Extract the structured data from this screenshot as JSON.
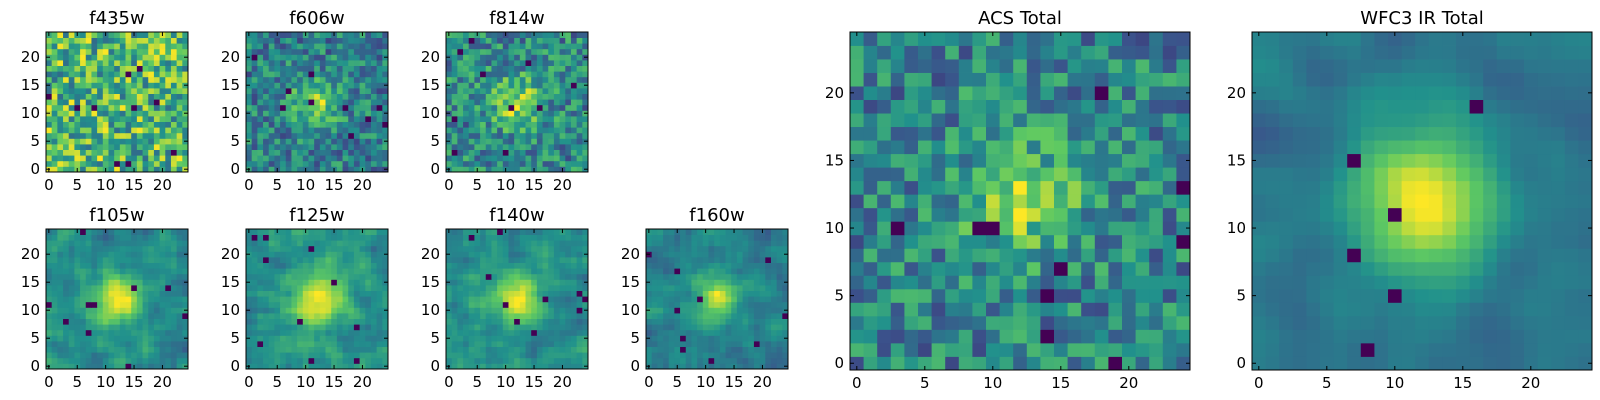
{
  "chart_data": [
    {
      "type": "heatmap",
      "title": "f435w",
      "xticks": [
        "0",
        "5",
        "10",
        "15",
        "20"
      ],
      "yticks": [
        "0",
        "5",
        "10",
        "15",
        "20"
      ],
      "grid_size": [
        25,
        25
      ],
      "colormap": "viridis",
      "pattern": "noise",
      "seed": 11
    },
    {
      "type": "heatmap",
      "title": "f606w",
      "xticks": [
        "0",
        "5",
        "10",
        "15",
        "20"
      ],
      "yticks": [
        "0",
        "5",
        "10",
        "15",
        "20"
      ],
      "grid_size": [
        25,
        25
      ],
      "colormap": "viridis",
      "pattern": "noisy-peak",
      "seed": 12
    },
    {
      "type": "heatmap",
      "title": "f814w",
      "xticks": [
        "0",
        "5",
        "10",
        "15",
        "20"
      ],
      "yticks": [
        "0",
        "5",
        "10",
        "15",
        "20"
      ],
      "grid_size": [
        25,
        25
      ],
      "colormap": "viridis",
      "pattern": "noisy-peak",
      "seed": 13
    },
    {
      "type": "heatmap",
      "title": "f105w",
      "xticks": [
        "0",
        "5",
        "10",
        "15",
        "20"
      ],
      "yticks": [
        "0",
        "5",
        "10",
        "15",
        "20"
      ],
      "grid_size": [
        25,
        25
      ],
      "colormap": "viridis",
      "pattern": "peak",
      "seed": 14
    },
    {
      "type": "heatmap",
      "title": "f125w",
      "xticks": [
        "0",
        "5",
        "10",
        "15",
        "20"
      ],
      "yticks": [
        "0",
        "5",
        "10",
        "15",
        "20"
      ],
      "grid_size": [
        25,
        25
      ],
      "colormap": "viridis",
      "pattern": "peak",
      "seed": 15
    },
    {
      "type": "heatmap",
      "title": "f140w",
      "xticks": [
        "0",
        "5",
        "10",
        "15",
        "20"
      ],
      "yticks": [
        "0",
        "5",
        "10",
        "15",
        "20"
      ],
      "grid_size": [
        25,
        25
      ],
      "colormap": "viridis",
      "pattern": "peak",
      "seed": 16
    },
    {
      "type": "heatmap",
      "title": "f160w",
      "xticks": [
        "0",
        "5",
        "10",
        "15",
        "20"
      ],
      "yticks": [
        "0",
        "5",
        "10",
        "15",
        "20"
      ],
      "grid_size": [
        25,
        25
      ],
      "colormap": "viridis",
      "pattern": "peak",
      "seed": 17
    },
    {
      "type": "heatmap",
      "title": "ACS Total",
      "xticks": [
        "0",
        "5",
        "10",
        "15",
        "20"
      ],
      "yticks": [
        "0",
        "5",
        "10",
        "15",
        "20"
      ],
      "grid_size": [
        25,
        25
      ],
      "colormap": "viridis",
      "pattern": "noisy-peak",
      "seed": 18
    },
    {
      "type": "heatmap",
      "title": "WFC3 IR Total",
      "xticks": [
        "0",
        "5",
        "10",
        "15",
        "20"
      ],
      "yticks": [
        "0",
        "5",
        "10",
        "15",
        "20"
      ],
      "grid_size": [
        25,
        25
      ],
      "colormap": "viridis",
      "pattern": "smooth-peak",
      "seed": 19
    }
  ]
}
